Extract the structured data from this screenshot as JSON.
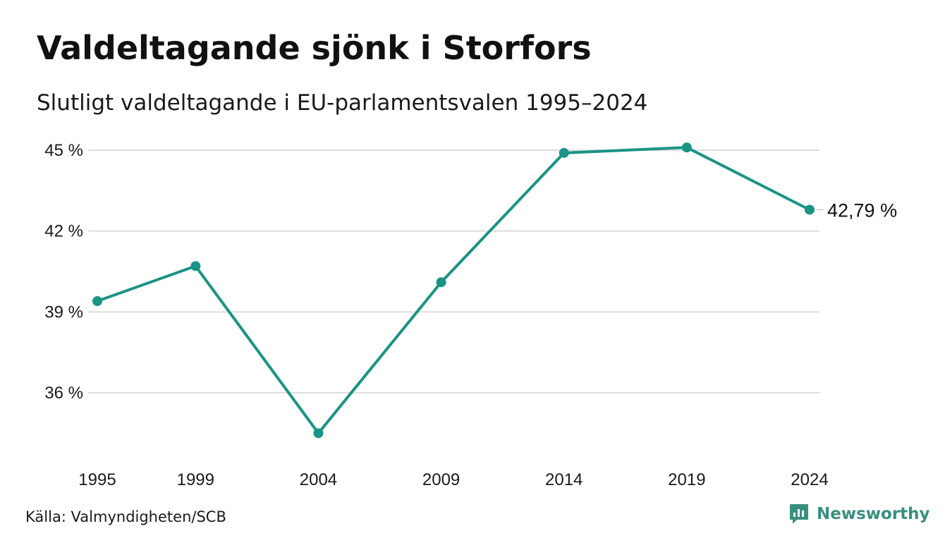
{
  "header": {
    "title": "Valdeltagande sjönk i Storfors",
    "subtitle": "Slutligt valdeltagande i EU-parlamentsvalen 1995–2024"
  },
  "footer": {
    "source": "Källa: Valmyndigheten/SCB",
    "brand": "Newsworthy",
    "brand_icon": "newsworthy-logo-icon"
  },
  "colors": {
    "line": "#1a9484",
    "grid": "#dddddd",
    "text": "#1a1a1a",
    "brand": "#3a8f7f"
  },
  "chart_data": {
    "type": "line",
    "title": "Valdeltagande sjönk i Storfors",
    "subtitle": "Slutligt valdeltagande i EU-parlamentsvalen 1995–2024",
    "xlabel": "",
    "ylabel": "",
    "x": [
      1995,
      1999,
      2004,
      2009,
      2014,
      2019,
      2024
    ],
    "series": [
      {
        "values": [
          39.4,
          40.7,
          34.5,
          40.1,
          44.9,
          45.1,
          42.79
        ]
      }
    ],
    "ylim": [
      34.0,
      45.6
    ],
    "y_ticks": [
      36,
      39,
      42,
      45
    ],
    "y_tick_labels": [
      "36 %",
      "39 %",
      "42 %",
      "45 %"
    ],
    "x_tick_labels": [
      "1995",
      "1999",
      "2004",
      "2009",
      "2014",
      "2019",
      "2024"
    ],
    "grid": true,
    "end_label": "42,79 %",
    "legend": "none"
  }
}
